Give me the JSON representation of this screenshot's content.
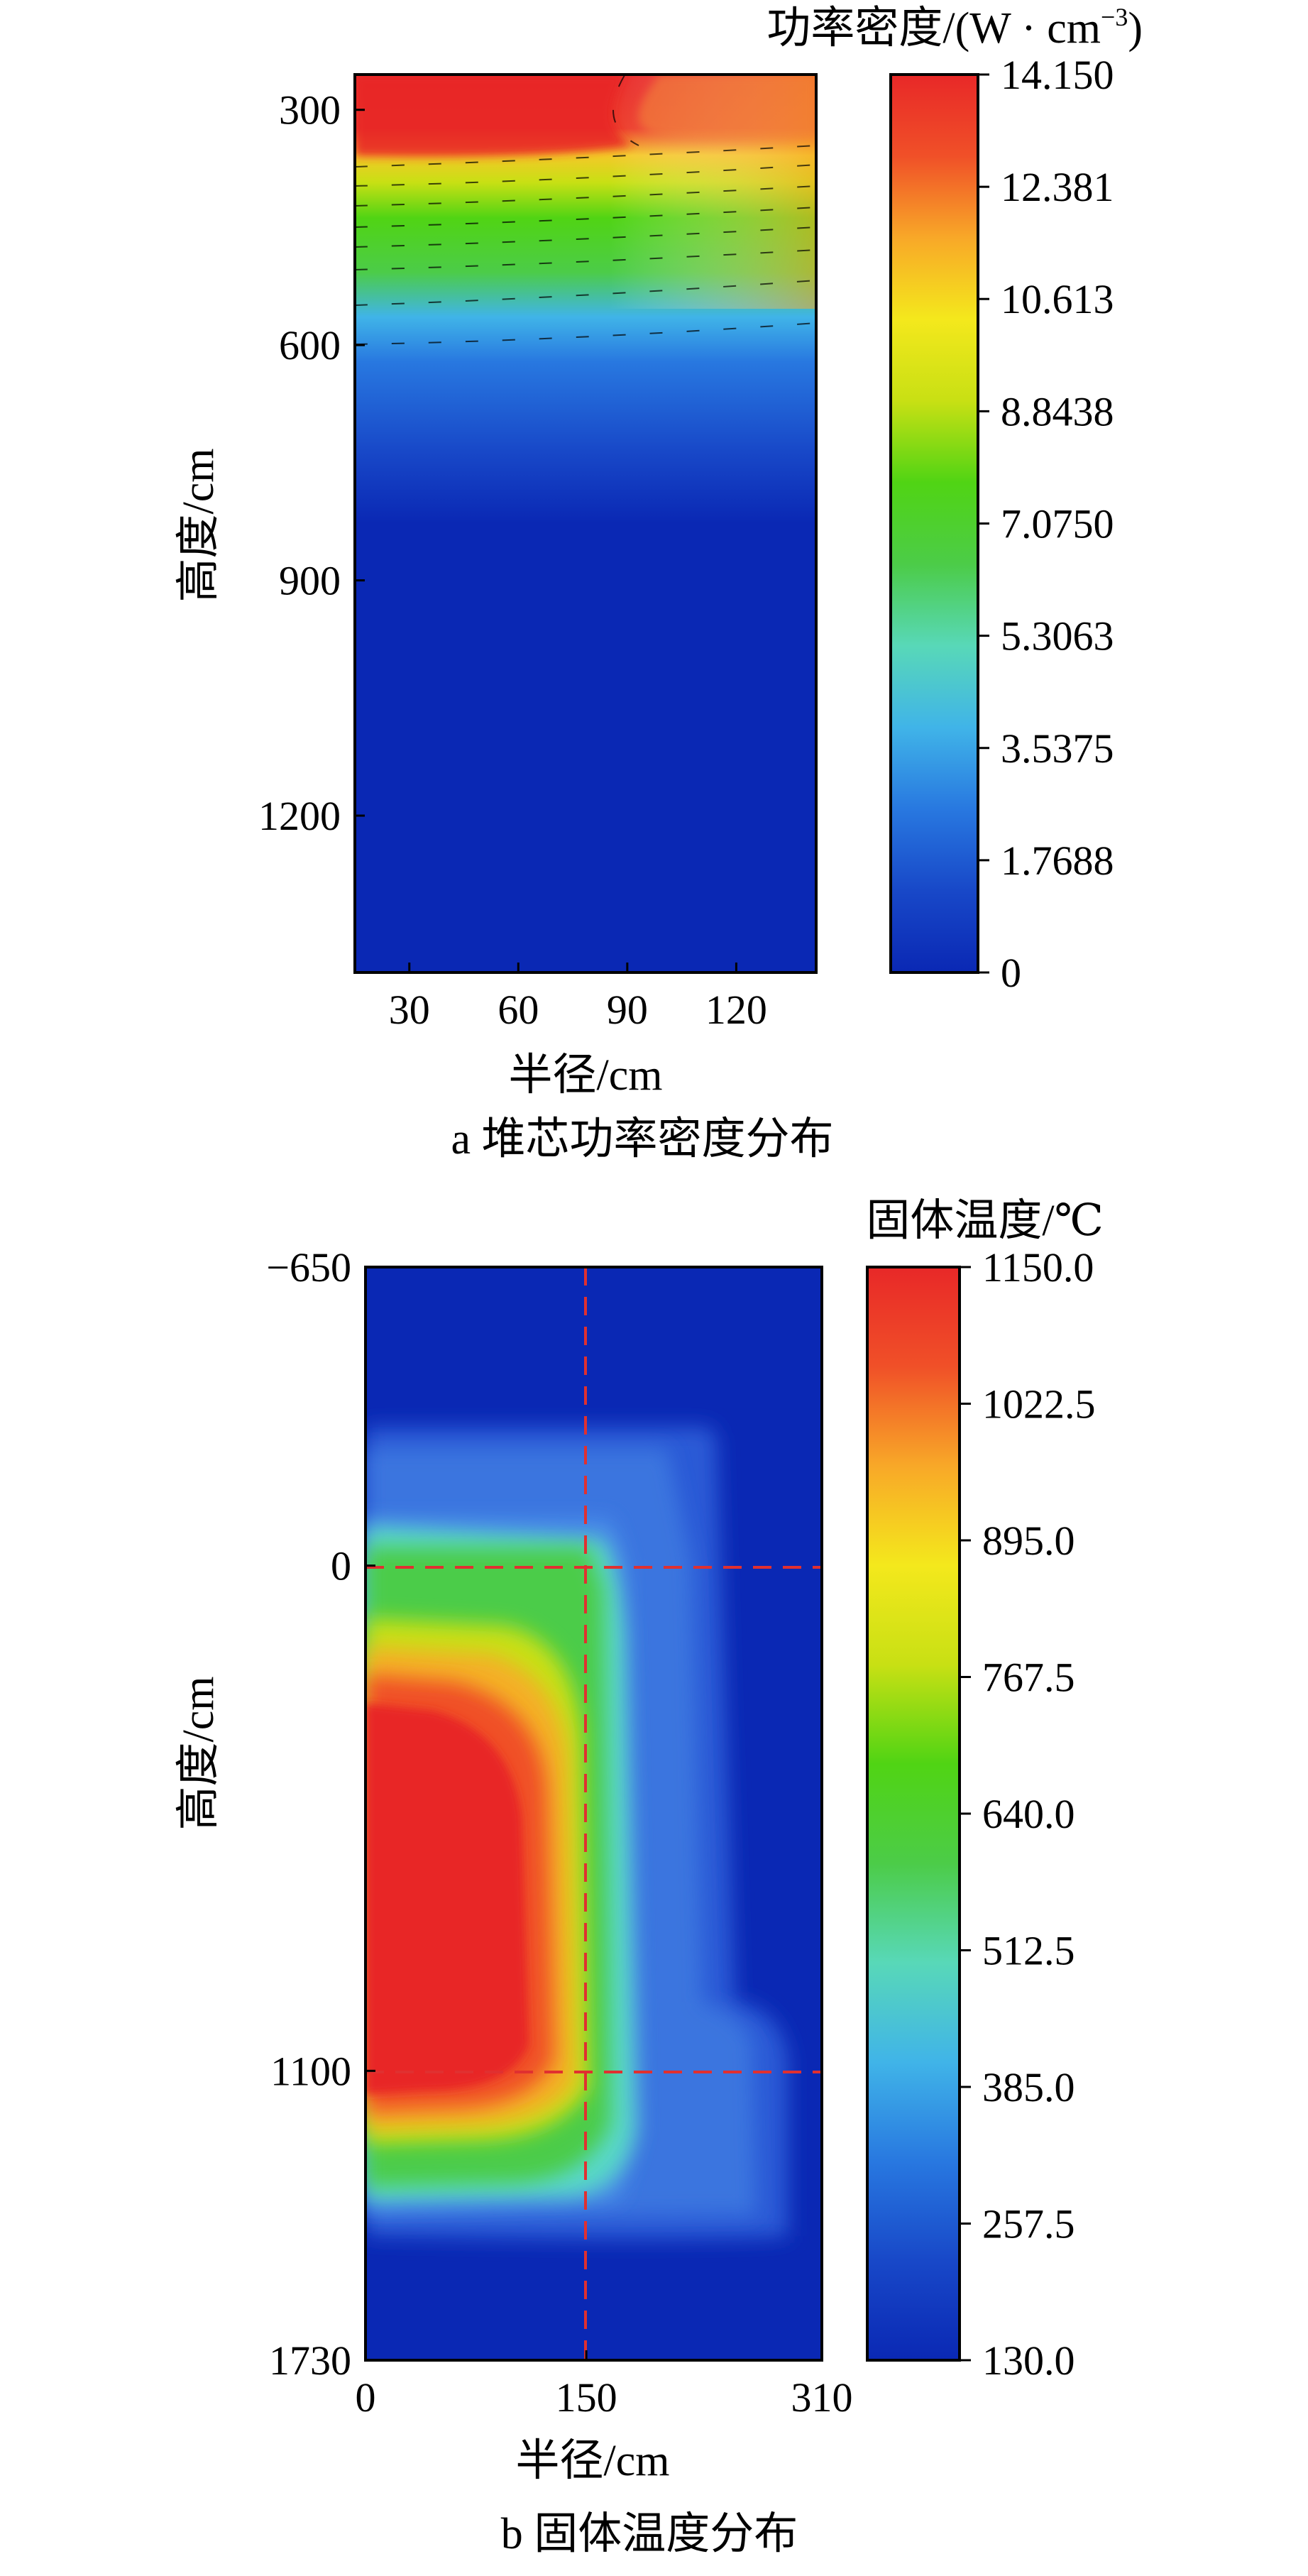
{
  "chart_data": [
    {
      "type": "heatmap",
      "caption": "a  堆芯功率密度分布",
      "xlabel": "半径/cm",
      "ylabel": "高度/cm",
      "colorbar_title": "功率密度/(W · cm",
      "colorbar_title_sup": "−3",
      "colorbar_title_end": ")",
      "x_range": [
        15,
        142
      ],
      "y_range": [
        255,
        1400
      ],
      "y_inverted": true,
      "x_ticks": [
        "30",
        "60",
        "90",
        "120"
      ],
      "x_tick_values": [
        30,
        60,
        90,
        120
      ],
      "y_ticks": [
        "300",
        "600",
        "900",
        "1200"
      ],
      "y_tick_values": [
        300,
        600,
        900,
        1200
      ],
      "colorbar_range": [
        0,
        14.15
      ],
      "colorbar_ticks": [
        "14.150",
        "12.381",
        "10.613",
        "8.8438",
        "7.0750",
        "5.3063",
        "3.5375",
        "1.7688",
        "0"
      ],
      "colorbar_tick_values": [
        14.15,
        12.381,
        10.613,
        8.8438,
        7.075,
        5.3063,
        3.5375,
        1.7688,
        0
      ],
      "colormap": [
        "#0a28b4",
        "#1848c8",
        "#2878e0",
        "#40b4e8",
        "#58d8b8",
        "#4ccc48",
        "#50d414",
        "#c8e014",
        "#f4e81c",
        "#f8a828",
        "#f05028",
        "#e82828"
      ]
    },
    {
      "type": "heatmap",
      "caption": "b  固体温度分布",
      "xlabel": "半径/cm",
      "ylabel": "高度/cm",
      "colorbar_title": "固体温度/℃",
      "x_range": [
        0,
        310
      ],
      "y_range": [
        -650,
        1730
      ],
      "y_inverted": true,
      "x_ticks": [
        "0",
        "150",
        "310"
      ],
      "x_tick_values": [
        0,
        150,
        310
      ],
      "y_ticks": [
        "−650",
        "0",
        "1100",
        "1730"
      ],
      "y_tick_values": [
        -650,
        0,
        1100,
        1730
      ],
      "reference_lines": {
        "vertical_x": [
          150
        ],
        "horizontal_y": [
          0,
          1100
        ],
        "color": "#e03030",
        "style": "dashed"
      },
      "colorbar_range": [
        130,
        1150
      ],
      "colorbar_ticks": [
        "1150.0",
        "1022.5",
        "895.0",
        "767.5",
        "640.0",
        "512.5",
        "385.0",
        "257.5",
        "130.0"
      ],
      "colorbar_tick_values": [
        1150,
        1022.5,
        895,
        767.5,
        640,
        512.5,
        385,
        257.5,
        130
      ],
      "colormap": [
        "#0a28b4",
        "#1848c8",
        "#2878e0",
        "#40b4e8",
        "#58d8b8",
        "#4ccc48",
        "#50d414",
        "#c8e014",
        "#f4e81c",
        "#f8a828",
        "#f05028",
        "#e82828"
      ]
    }
  ]
}
